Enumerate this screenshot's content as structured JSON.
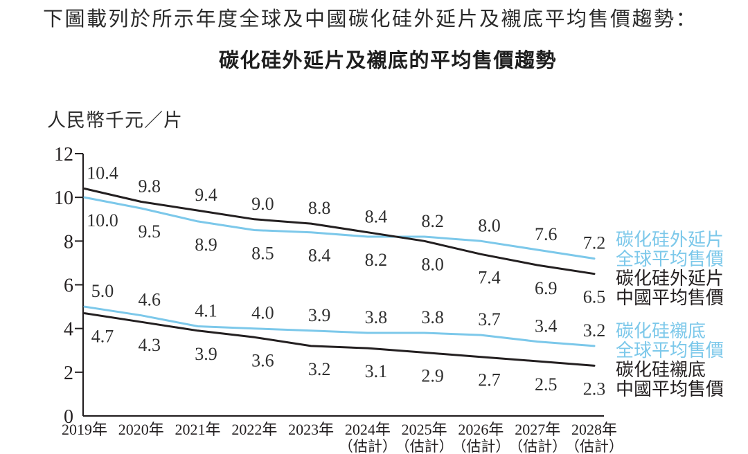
{
  "page": {
    "intro_text": "下圖載列於所示年度全球及中國碳化硅外延片及襯底平均售價趨勢："
  },
  "chart_data": {
    "type": "line",
    "title": "碳化硅外延片及襯底的平均售價趨勢",
    "ylabel": "人民幣千元／片",
    "xlabel": "",
    "ylim": [
      0,
      12
    ],
    "y_ticks": [
      0,
      2,
      4,
      6,
      8,
      10,
      12
    ],
    "grid": false,
    "legend_position": "right",
    "categories": [
      "2019年",
      "2020年",
      "2021年",
      "2022年",
      "2023年",
      "2024年",
      "2025年",
      "2026年",
      "2027年",
      "2028年"
    ],
    "category_notes": [
      "",
      "",
      "",
      "",
      "",
      "（估計）",
      "（估計）",
      "（估計）",
      "（估計）",
      "（估計）"
    ],
    "axis_color": "#231f20",
    "label_color": "#2f2f2f",
    "series": [
      {
        "id": "epitaxial-global",
        "name": "碳化硅外延片全球平均售價",
        "legend": [
          "碳化硅外延片",
          "全球平均售價"
        ],
        "color": "#7cc8ea",
        "values": [
          10.0,
          9.5,
          8.9,
          8.5,
          8.4,
          8.2,
          8.2,
          8.0,
          7.6,
          7.2
        ]
      },
      {
        "id": "epitaxial-china",
        "name": "碳化硅外延片中國平均售價",
        "legend": [
          "碳化硅外延片",
          "中國平均售價"
        ],
        "color": "#231f20",
        "values": [
          10.4,
          9.8,
          9.4,
          9.0,
          8.8,
          8.4,
          8.0,
          7.4,
          6.9,
          6.5
        ]
      },
      {
        "id": "substrate-global",
        "name": "碳化硅襯底全球平均售價",
        "legend": [
          "碳化硅襯底",
          "全球平均售價"
        ],
        "color": "#7cc8ea",
        "values": [
          5.0,
          4.6,
          4.1,
          4.0,
          3.9,
          3.8,
          3.8,
          3.7,
          3.4,
          3.2
        ]
      },
      {
        "id": "substrate-china",
        "name": "碳化硅襯底中國平均售價",
        "legend": [
          "碳化硅襯底",
          "中國平均售價"
        ],
        "color": "#231f20",
        "values": [
          4.7,
          4.3,
          3.9,
          3.6,
          3.2,
          3.1,
          2.9,
          2.7,
          2.5,
          2.3
        ]
      }
    ]
  }
}
